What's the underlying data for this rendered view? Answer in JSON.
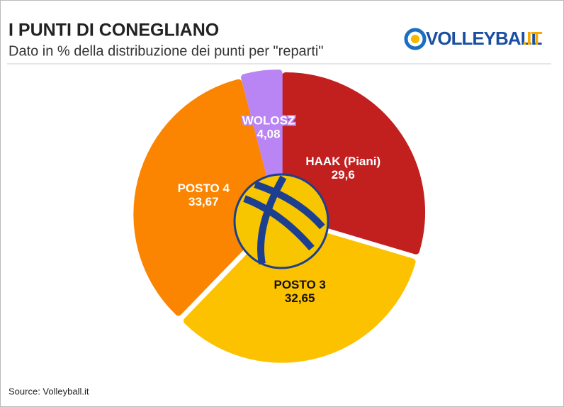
{
  "chart_data": {
    "type": "pie",
    "title": "I PUNTI DI CONEGLIANO",
    "subtitle": "Dato in % della distribuzione dei punti per \"reparti\"",
    "categories": [
      "HAAK (Piani)",
      "POSTO 3",
      "POSTO 4",
      "WOLOSZ"
    ],
    "values": [
      29.6,
      32.65,
      33.67,
      4.08
    ],
    "value_labels": [
      "29,6",
      "32,65",
      "33,67",
      "4,08"
    ],
    "colors": [
      "#c21f1f",
      "#fcc200",
      "#fb8500",
      "#b985f4"
    ],
    "source": "Source: Volleyball.it"
  },
  "logo": {
    "text": "VOLLEYBALL",
    "suffix": ".IT"
  }
}
